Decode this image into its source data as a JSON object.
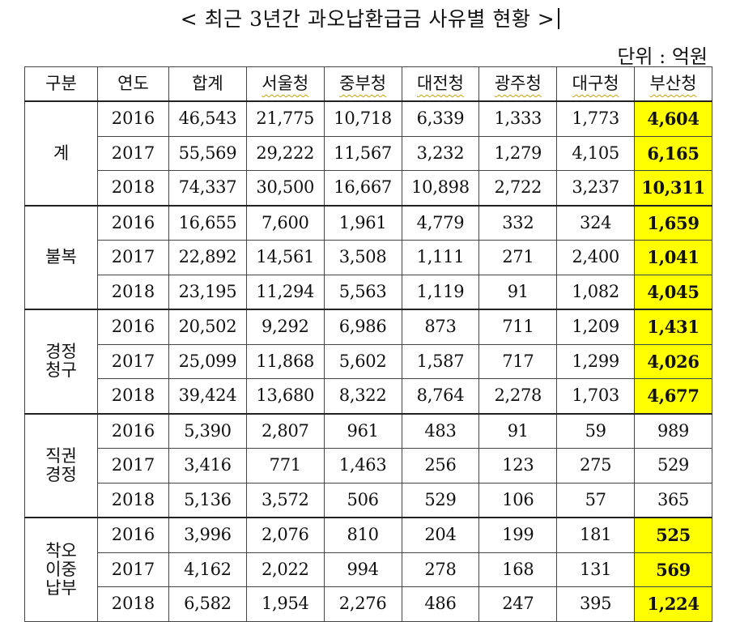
{
  "title": "< 최근 3년간 과오납환급금 사유별 현황 >",
  "unit": "단위 : 억원",
  "columns": [
    "구분",
    "연도",
    "합계",
    "서울청",
    "중부청",
    "대전청",
    "광주청",
    "대구청",
    "부산청"
  ],
  "groups": [
    {
      "category": "계",
      "rows": [
        {
          "year": "2016",
          "values": [
            "46,543",
            "21,775",
            "10,718",
            "6,339",
            "1,333",
            "1,773",
            "4,604"
          ],
          "busan_highlight": true
        },
        {
          "year": "2017",
          "values": [
            "55,569",
            "29,222",
            "11,567",
            "3,232",
            "1,279",
            "4,105",
            "6,165"
          ],
          "busan_highlight": true
        },
        {
          "year": "2018",
          "values": [
            "74,337",
            "30,500",
            "16,667",
            "10,898",
            "2,722",
            "3,237",
            "10,311"
          ],
          "busan_highlight": true
        }
      ]
    },
    {
      "category": "불복",
      "rows": [
        {
          "year": "2016",
          "values": [
            "16,655",
            "7,600",
            "1,961",
            "4,779",
            "332",
            "324",
            "1,659"
          ],
          "busan_highlight": true
        },
        {
          "year": "2017",
          "values": [
            "22,892",
            "14,561",
            "3,508",
            "1,111",
            "271",
            "2,400",
            "1,041"
          ],
          "busan_highlight": true
        },
        {
          "year": "2018",
          "values": [
            "23,195",
            "11,294",
            "5,563",
            "1,119",
            "91",
            "1,082",
            "4,045"
          ],
          "busan_highlight": true
        }
      ]
    },
    {
      "category": "경정\n청구",
      "rows": [
        {
          "year": "2016",
          "values": [
            "20,502",
            "9,292",
            "6,986",
            "873",
            "711",
            "1,209",
            "1,431"
          ],
          "busan_highlight": true
        },
        {
          "year": "2017",
          "values": [
            "25,099",
            "11,868",
            "5,602",
            "1,587",
            "717",
            "1,299",
            "4,026"
          ],
          "busan_highlight": true
        },
        {
          "year": "2018",
          "values": [
            "39,424",
            "13,680",
            "8,322",
            "8,764",
            "2,278",
            "1,703",
            "4,677"
          ],
          "busan_highlight": true
        }
      ]
    },
    {
      "category": "직권\n경정",
      "rows": [
        {
          "year": "2016",
          "values": [
            "5,390",
            "2,807",
            "961",
            "483",
            "91",
            "59",
            "989"
          ],
          "busan_highlight": false
        },
        {
          "year": "2017",
          "values": [
            "3,416",
            "771",
            "1,463",
            "256",
            "123",
            "275",
            "529"
          ],
          "busan_highlight": false
        },
        {
          "year": "2018",
          "values": [
            "5,136",
            "3,572",
            "506",
            "529",
            "106",
            "57",
            "365"
          ],
          "busan_highlight": false
        }
      ]
    },
    {
      "category": "착오\n이중\n납부",
      "rows": [
        {
          "year": "2016",
          "values": [
            "3,996",
            "2,076",
            "810",
            "204",
            "199",
            "181",
            "525"
          ],
          "busan_highlight": true
        },
        {
          "year": "2017",
          "values": [
            "4,162",
            "2,022",
            "994",
            "278",
            "168",
            "131",
            "569"
          ],
          "busan_highlight": true
        },
        {
          "year": "2018",
          "values": [
            "6,582",
            "1,954",
            "2,276",
            "486",
            "247",
            "395",
            "1,224"
          ],
          "busan_highlight": true
        }
      ]
    }
  ],
  "colors": {
    "highlight": "#ffff00",
    "border": "#444444"
  }
}
